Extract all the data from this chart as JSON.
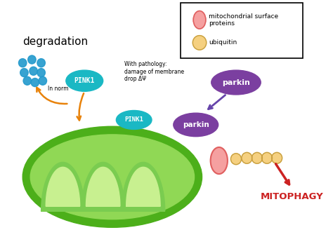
{
  "fig_width": 4.74,
  "fig_height": 3.28,
  "bg_color": "#ffffff",
  "mito_outer_color": "#4caf1a",
  "mito_inner_color": "#90d855",
  "pink1_color": "#1ab8c4",
  "parkin_upper_color": "#7b3fa0",
  "parkin_lower_color": "#7b3fa0",
  "arrow_orange": "#e8820a",
  "arrow_purple": "#6644aa",
  "arrow_red": "#cc2222",
  "degradation_dots_color": "#2299cc",
  "mito_protein_color": "#f5a0a0",
  "mito_protein_edge": "#e06060",
  "ubiquitin_color": "#f5d080",
  "ubiquitin_edge": "#c8a040",
  "cristae_outer": "#7acc50",
  "cristae_inner": "#c8f090",
  "title": "degradation",
  "legend_protein": "mitochondrial surface\nproteins",
  "legend_ubiquitin": "ubiquitin",
  "pink1_label": "PINK1",
  "parkin_label": "parkin",
  "mitophagy_label": "MITOPHAGY",
  "in_norm_label": "In norm",
  "pathology_label": "With pathology:\ndamage of membrane\ndrop ΔΨ"
}
